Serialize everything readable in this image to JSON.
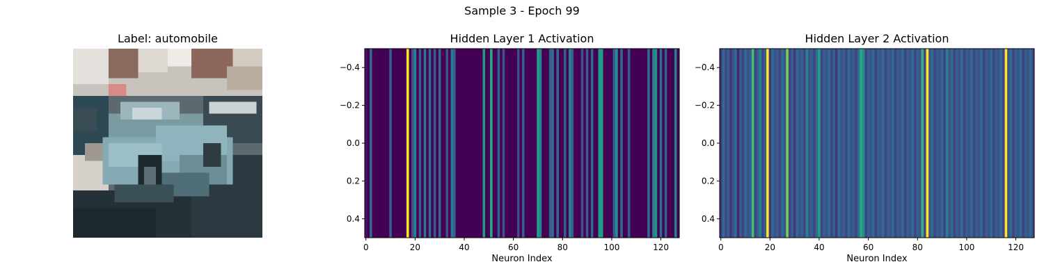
{
  "figure": {
    "suptitle": "Sample 3 - Epoch 99"
  },
  "chart_data": [
    {
      "type": "image",
      "title": "Label: automobile",
      "axes_visible": false,
      "image_size": [
        32,
        32
      ],
      "content": "pixelated photo of a light-blue vintage car on a street"
    },
    {
      "type": "heatmap",
      "title": "Hidden Layer 1 Activation",
      "xlabel": "Neuron Index",
      "ylabel": "",
      "xlim": [
        -0.5,
        127.5
      ],
      "ylim": [
        0.5,
        -0.5
      ],
      "xticks": [
        0,
        20,
        40,
        60,
        80,
        100,
        120
      ],
      "yticks": [
        -0.4,
        -0.2,
        0.0,
        0.2,
        0.4
      ],
      "ytick_labels": [
        "−0.4",
        "−0.2",
        "0.0",
        "0.2",
        "0.4"
      ],
      "colormap": "viridis",
      "values": [
        0.05,
        0.0,
        0.35,
        0.0,
        0.0,
        0.0,
        0.0,
        0.0,
        0.0,
        0.0,
        0.3,
        0.0,
        0.0,
        0.0,
        0.0,
        0.0,
        0.0,
        1.0,
        0.0,
        0.25,
        0.45,
        0.0,
        0.3,
        0.0,
        0.4,
        0.0,
        0.35,
        0.0,
        0.3,
        0.0,
        0.35,
        0.0,
        0.0,
        0.25,
        0.0,
        0.4,
        0.3,
        0.0,
        0.0,
        0.0,
        0.0,
        0.0,
        0.0,
        0.0,
        0.0,
        0.0,
        0.0,
        0.0,
        0.55,
        0.0,
        0.0,
        0.6,
        0.0,
        0.0,
        0.3,
        0.0,
        0.25,
        0.0,
        0.0,
        0.0,
        0.0,
        0.0,
        0.25,
        0.0,
        0.3,
        0.0,
        0.0,
        0.0,
        0.0,
        0.0,
        0.55,
        0.45,
        0.0,
        0.0,
        0.0,
        0.3,
        0.35,
        0.0,
        0.35,
        0.0,
        0.0,
        0.3,
        0.0,
        0.45,
        0.3,
        0.0,
        0.0,
        0.0,
        0.25,
        0.0,
        0.3,
        0.0,
        0.35,
        0.0,
        0.0,
        0.55,
        0.55,
        0.0,
        0.0,
        0.0,
        0.0,
        0.3,
        0.5,
        0.0,
        0.35,
        0.0,
        0.0,
        0.3,
        0.0,
        0.0,
        0.0,
        0.0,
        0.0,
        0.0,
        0.0,
        0.35,
        0.0,
        0.45,
        0.5,
        0.0,
        0.35,
        0.0,
        0.3,
        0.0,
        0.0,
        0.0,
        0.45,
        0.0
      ]
    },
    {
      "type": "heatmap",
      "title": "Hidden Layer 2 Activation",
      "xlabel": "Neuron Index",
      "ylabel": "",
      "xlim": [
        -0.5,
        127.5
      ],
      "ylim": [
        0.5,
        -0.5
      ],
      "xticks": [
        0,
        20,
        40,
        60,
        80,
        100,
        120
      ],
      "yticks": [
        -0.4,
        -0.2,
        0.0,
        0.2,
        0.4
      ],
      "ytick_labels": [
        "−0.4",
        "−0.2",
        "0.0",
        "0.2",
        "0.4"
      ],
      "colormap": "viridis",
      "values": [
        0.15,
        0.35,
        0.2,
        0.3,
        0.15,
        0.25,
        0.35,
        0.1,
        0.3,
        0.2,
        0.35,
        0.25,
        0.3,
        0.7,
        0.2,
        0.3,
        0.45,
        0.2,
        0.3,
        1.0,
        0.15,
        0.35,
        0.25,
        0.3,
        0.2,
        0.35,
        0.25,
        0.8,
        0.2,
        0.3,
        0.15,
        0.35,
        0.25,
        0.3,
        0.2,
        0.45,
        0.25,
        0.3,
        0.2,
        0.35,
        0.55,
        0.2,
        0.3,
        0.25,
        0.35,
        0.2,
        0.3,
        0.15,
        0.35,
        0.25,
        0.3,
        0.2,
        0.35,
        0.25,
        0.3,
        0.2,
        0.35,
        0.6,
        0.5,
        0.2,
        0.3,
        0.25,
        0.35,
        0.2,
        0.3,
        0.25,
        0.35,
        0.2,
        0.3,
        0.25,
        0.35,
        0.2,
        0.3,
        0.25,
        0.35,
        0.2,
        0.3,
        0.25,
        0.35,
        0.2,
        0.3,
        0.25,
        0.65,
        0.2,
        1.0,
        0.25,
        0.35,
        0.2,
        0.3,
        0.25,
        0.35,
        0.2,
        0.45,
        0.25,
        0.35,
        0.2,
        0.3,
        0.25,
        0.35,
        0.2,
        0.3,
        0.25,
        0.35,
        0.2,
        0.3,
        0.25,
        0.35,
        0.2,
        0.3,
        0.25,
        0.35,
        0.2,
        0.3,
        0.25,
        0.35,
        0.2,
        1.0,
        0.25,
        0.35,
        0.2,
        0.3,
        0.25,
        0.35,
        0.2,
        0.3,
        0.25,
        0.35,
        0.2
      ]
    }
  ]
}
